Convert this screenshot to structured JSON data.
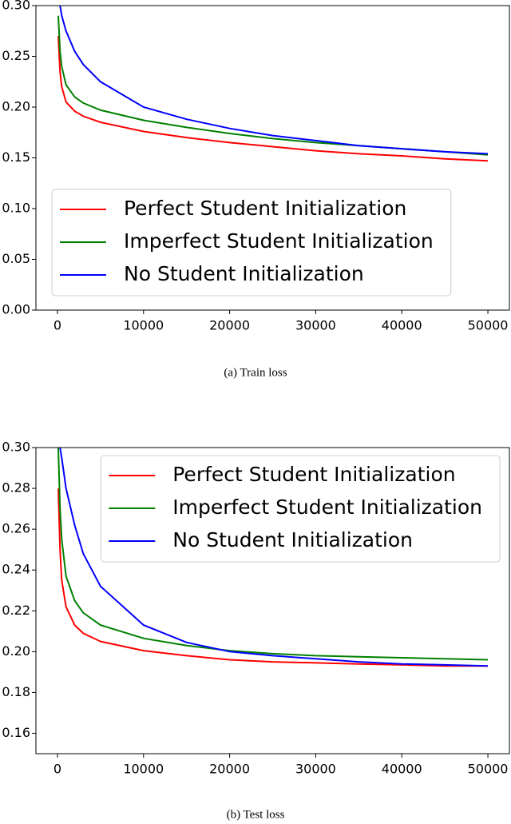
{
  "chart_data": [
    {
      "type": "line",
      "caption": "(a) Train loss",
      "x": [
        100,
        300,
        500,
        1000,
        2000,
        3000,
        5000,
        10000,
        15000,
        20000,
        25000,
        30000,
        35000,
        40000,
        45000,
        50000
      ],
      "series": [
        {
          "name": "Perfect Student Initialization",
          "color": "#ff0000",
          "values": [
            0.27,
            0.235,
            0.22,
            0.205,
            0.196,
            0.191,
            0.185,
            0.176,
            0.17,
            0.165,
            0.161,
            0.157,
            0.154,
            0.152,
            0.149,
            0.147
          ]
        },
        {
          "name": "Imperfect Student Initialization",
          "color": "#008000",
          "values": [
            0.29,
            0.255,
            0.24,
            0.222,
            0.21,
            0.204,
            0.197,
            0.187,
            0.18,
            0.174,
            0.169,
            0.165,
            0.162,
            0.159,
            0.156,
            0.153
          ]
        },
        {
          "name": "No Student Initialization",
          "color": "#0000ff",
          "values": [
            null,
            0.3,
            0.29,
            0.275,
            0.255,
            0.242,
            0.225,
            0.2,
            0.188,
            0.179,
            0.172,
            0.167,
            0.162,
            0.159,
            0.156,
            0.154
          ]
        }
      ],
      "xlim": [
        -2500,
        52500
      ],
      "xticks": [
        0,
        10000,
        20000,
        30000,
        40000,
        50000
      ],
      "ylim": [
        0,
        0.3
      ],
      "yticks": [
        {
          "value": 0,
          "label": "0.00"
        },
        {
          "value": 0.05,
          "label": "0.05"
        },
        {
          "value": 0.1,
          "label": "0.10"
        },
        {
          "value": 0.15,
          "label": "0.15"
        },
        {
          "value": 0.2,
          "label": "0.20"
        },
        {
          "value": 0.25,
          "label": "0.25"
        },
        {
          "value": 0.3,
          "label": "0.30"
        }
      ],
      "legend": "lower left"
    },
    {
      "type": "line",
      "caption": "(b) Test loss",
      "x": [
        100,
        300,
        500,
        1000,
        2000,
        3000,
        5000,
        10000,
        15000,
        20000,
        25000,
        30000,
        35000,
        40000,
        45000,
        50000
      ],
      "series": [
        {
          "name": "Perfect Student Initialization",
          "color": "#ff0000",
          "values": [
            0.28,
            0.25,
            0.235,
            0.222,
            0.213,
            0.209,
            0.205,
            0.2005,
            0.198,
            0.196,
            0.195,
            0.1945,
            0.194,
            0.1935,
            0.193,
            0.193
          ]
        },
        {
          "name": "Imperfect Student Initialization",
          "color": "#008000",
          "values": [
            0.3,
            0.27,
            0.255,
            0.237,
            0.225,
            0.219,
            0.213,
            0.2065,
            0.203,
            0.2005,
            0.199,
            0.198,
            0.1975,
            0.197,
            0.1965,
            0.196
          ]
        },
        {
          "name": "No Student Initialization",
          "color": "#0000ff",
          "values": [
            null,
            0.3,
            0.295,
            0.28,
            0.262,
            0.248,
            0.232,
            0.213,
            0.2045,
            0.2,
            0.198,
            0.1965,
            0.195,
            0.194,
            0.1935,
            0.193
          ]
        }
      ],
      "xlim": [
        -2500,
        52500
      ],
      "xticks": [
        0,
        10000,
        20000,
        30000,
        40000,
        50000
      ],
      "ylim": [
        0.15,
        0.3
      ],
      "yticks": [
        {
          "value": 0.16,
          "label": "0.16"
        },
        {
          "value": 0.18,
          "label": "0.18"
        },
        {
          "value": 0.2,
          "label": "0.20"
        },
        {
          "value": 0.22,
          "label": "0.22"
        },
        {
          "value": 0.24,
          "label": "0.24"
        },
        {
          "value": 0.26,
          "label": "0.26"
        },
        {
          "value": 0.28,
          "label": "0.28"
        },
        {
          "value": 0.3,
          "label": "0.30"
        }
      ],
      "legend": "upper right"
    }
  ]
}
